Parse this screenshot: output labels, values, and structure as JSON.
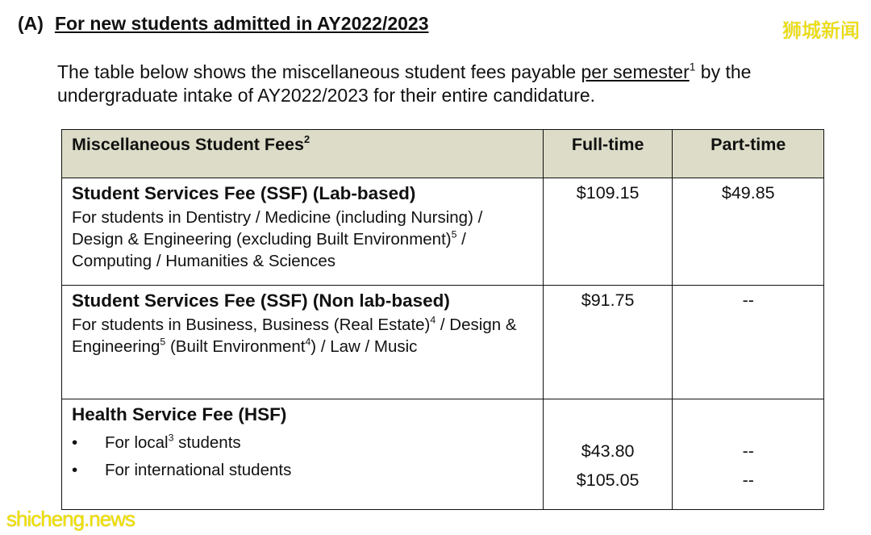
{
  "section": {
    "label": "(A)",
    "title": "For new students admitted in AY2022/2023"
  },
  "intro": {
    "before": "The table below shows the miscellaneous student fees payable ",
    "underlined": "per semester",
    "sup": "1",
    "after": " by the undergraduate intake of AY2022/2023 for their entire candidature."
  },
  "table": {
    "headers": {
      "fees": "Miscellaneous Student Fees",
      "fees_sup": "2",
      "full_time": "Full-time",
      "part_time": "Part-time"
    },
    "rows": [
      {
        "title": "Student Services Fee (SSF) (Lab-based)",
        "desc_a": "For students in Dentistry / Medicine (including Nursing) / Design & Engineering (excluding Built Environment)",
        "sup_a": "5",
        "desc_b": " / Computing / Humanities & Sciences",
        "full_time": "$109.15",
        "part_time": "$49.85"
      },
      {
        "title": "Student Services Fee (SSF) (Non lab-based)",
        "desc_a": "For students in Business, Business (Real Estate)",
        "sup_a": "4",
        "desc_b": " / Design & Engineering",
        "sup_b": "5",
        "desc_c": " (Built Environment",
        "sup_c": "4",
        "desc_d": ") / Law / Music",
        "full_time": "$91.75",
        "part_time": "--"
      },
      {
        "title": "Health Service Fee (HSF)",
        "items": [
          {
            "before": "For local",
            "sup": "3",
            "after": " students",
            "full_time": "$43.80",
            "part_time": "--"
          },
          {
            "before": "For international students",
            "full_time": "$105.05",
            "part_time": "--"
          }
        ]
      }
    ]
  },
  "watermarks": {
    "chinese": "狮城新闻",
    "english": "shicheng.news"
  },
  "colors": {
    "header_bg": "#dcdcc8",
    "watermark": "#f0e000"
  }
}
